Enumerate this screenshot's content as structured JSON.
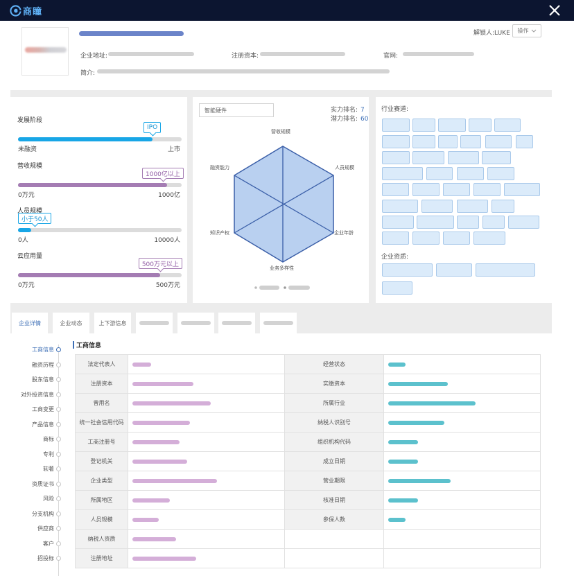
{
  "app": {
    "logo_text": "商瞳"
  },
  "header": {
    "unlock_label": "解锁人:LUKE",
    "op_button": "操作",
    "address_label": "企业地址:",
    "capital_label": "注册资本:",
    "website_label": "官网:",
    "intro_label": "简介:"
  },
  "metrics": [
    {
      "title": "发展阶段",
      "tip": "IPO",
      "min": "未融资",
      "max": "上市",
      "fill_percent": 82,
      "color": "#18a6e6"
    },
    {
      "title": "营收规模",
      "tip": "1000亿以上",
      "min": "0万元",
      "max": "1000亿",
      "fill_percent": 91,
      "color": "#a47cb3"
    },
    {
      "title": "人员规模",
      "tip": "小于50人",
      "min": "0人",
      "max": "10000人",
      "fill_percent": 8,
      "color": "#18a6e6"
    },
    {
      "title": "云应用量",
      "tip": "500万元以上",
      "min": "0万元",
      "max": "500万元",
      "fill_percent": 87,
      "color": "#a47cb3"
    }
  ],
  "radar": {
    "industry_value": "智能硬件",
    "strength_rank_label": "实力排名:",
    "strength_rank_value": "7",
    "potential_rank_label": "潜力排名:",
    "potential_rank_value": "60",
    "axes": [
      "营收规模",
      "人员规模",
      "企业年龄",
      "业务多样性",
      "知识产权",
      "融资能力"
    ]
  },
  "tags": {
    "industry_label": "行业赛道:",
    "qualification_label": "企业资质:"
  },
  "tabs": [
    "企业详情",
    "企业动态",
    "上下游信息"
  ],
  "sidebar": [
    "工商信息",
    "融资历程",
    "股东信息",
    "对外投资信息",
    "工商变更",
    "产品信息",
    "商标",
    "专利",
    "软著",
    "资质证书",
    "风险",
    "分支机构",
    "供应商",
    "客户",
    "招投标"
  ],
  "business_info": {
    "title": "工商信息",
    "rows": [
      {
        "left": "法定代表人",
        "left_fill": 0.12,
        "right": "经营状态",
        "right_fill": 0.11
      },
      {
        "left": "注册资本",
        "left_fill": 0.39,
        "right": "实缴资本",
        "right_fill": 0.38
      },
      {
        "left": "曾用名",
        "left_fill": 0.5,
        "right": "所属行业",
        "right_fill": 0.56
      },
      {
        "left": "统一社会信用代码",
        "left_fill": 0.37,
        "right": "纳税人识别号",
        "right_fill": 0.36
      },
      {
        "left": "工商注册号",
        "left_fill": 0.3,
        "right": "组织机构代码",
        "right_fill": 0.19
      },
      {
        "left": "登记机关",
        "left_fill": 0.35,
        "right": "成立日期",
        "right_fill": 0.19
      },
      {
        "left": "企业类型",
        "left_fill": 0.54,
        "right": "营业期限",
        "right_fill": 0.4
      },
      {
        "left": "所属地区",
        "left_fill": 0.24,
        "right": "核准日期",
        "right_fill": 0.19
      },
      {
        "left": "人员规模",
        "left_fill": 0.17,
        "right": "参保人数",
        "right_fill": 0.11
      },
      {
        "left": "纳税人资质",
        "left_fill": 0.28,
        "right": "",
        "right_fill": 0
      },
      {
        "left": "注册地址",
        "left_fill": 0.41,
        "right": "",
        "right_fill": 0
      }
    ]
  }
}
